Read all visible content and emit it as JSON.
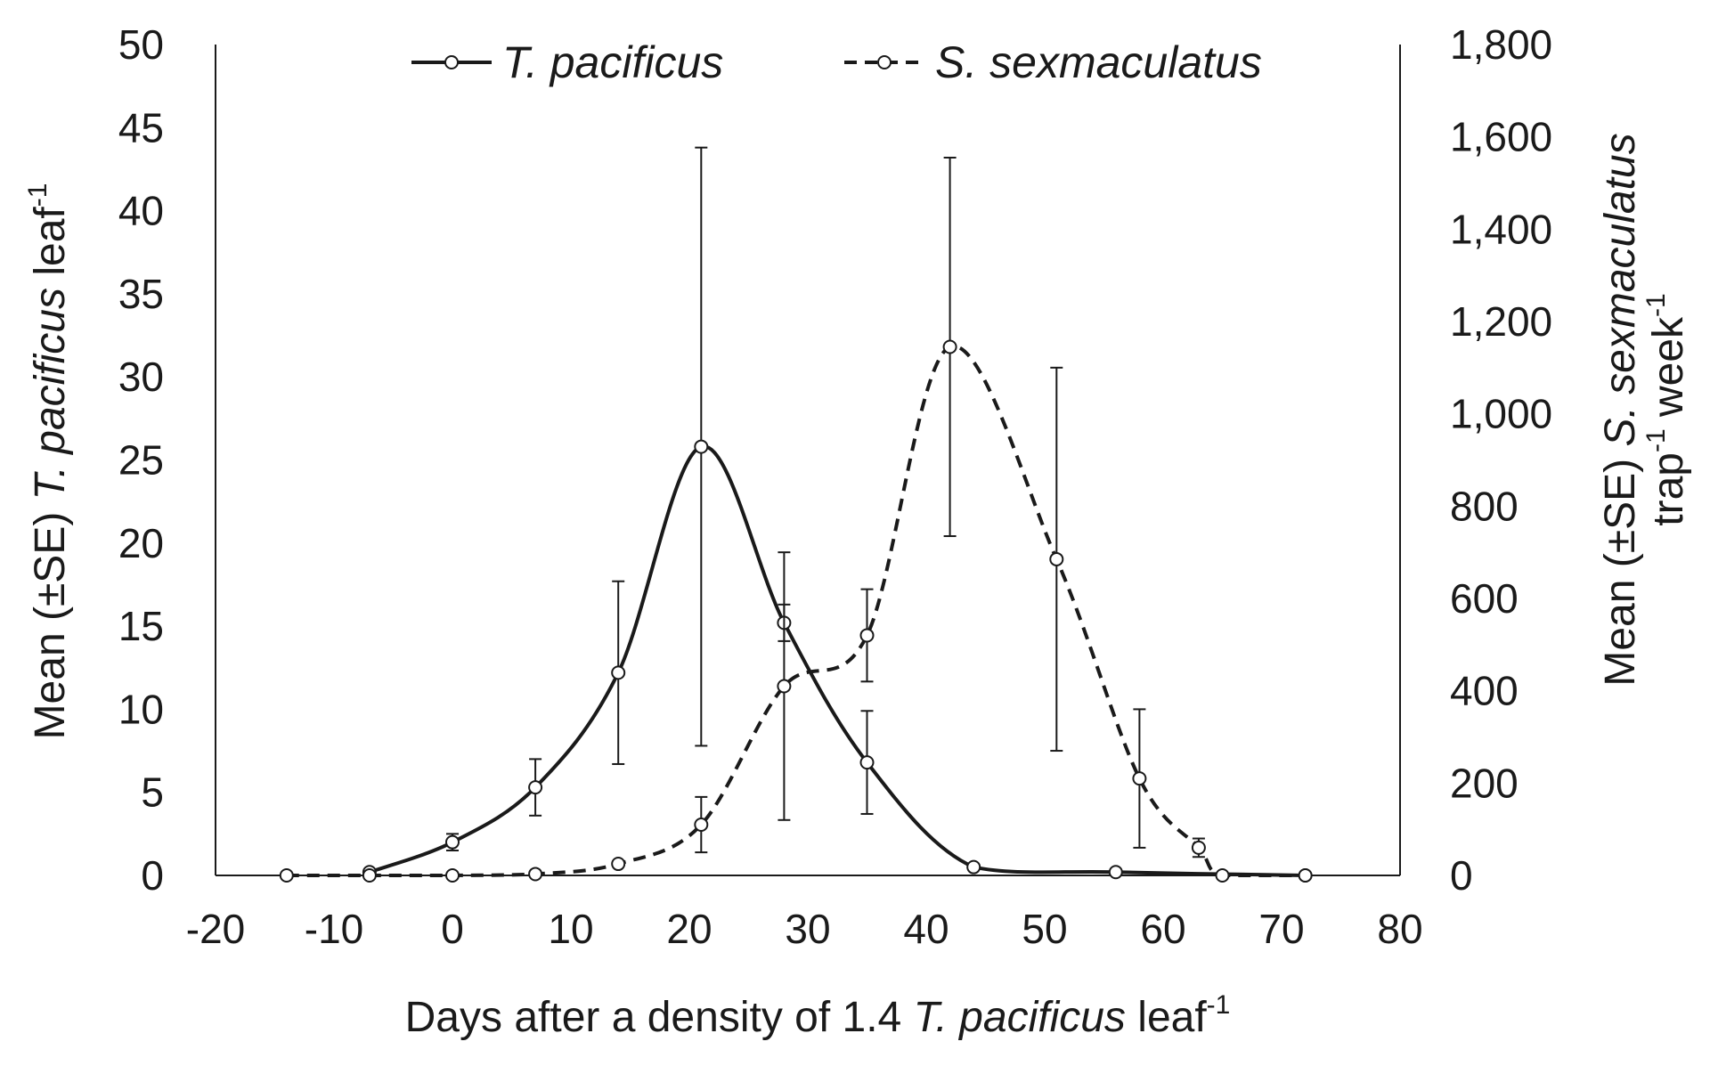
{
  "chart_data": {
    "type": "line",
    "title": "",
    "xlabel": {
      "before": "Days after a density of 1.4 ",
      "italic": "T. pacificus",
      "after": " leaf",
      "sup": "-1"
    },
    "ylabel": {
      "before": "Mean (±SE) ",
      "italic": "T. pacificus",
      "after": " leaf",
      "sup": "-1"
    },
    "y2label": {
      "line1_before": "Mean (±SE) ",
      "line1_italic": "S. sexmaculatus",
      "line2_a": "trap",
      "line2_sup1": "-1",
      "line2_b": " week",
      "line2_sup2": "-1"
    },
    "xlim": [
      -20,
      80
    ],
    "ylim": [
      0,
      50
    ],
    "y2lim": [
      0,
      1800
    ],
    "x_ticks": [
      "-20",
      "-10",
      "0",
      "10",
      "20",
      "30",
      "40",
      "50",
      "60",
      "70",
      "80"
    ],
    "y_ticks": [
      "0",
      "5",
      "10",
      "15",
      "20",
      "25",
      "30",
      "35",
      "40",
      "45",
      "50"
    ],
    "y2_ticks": [
      "0",
      "200",
      "400",
      "600",
      "800",
      "1,000",
      "1,200",
      "1,400",
      "1,600",
      "1,800"
    ],
    "legend_position": "top-center",
    "series": [
      {
        "name": "T. pacificus",
        "axis": "left",
        "line_style": "solid",
        "points": [
          {
            "x": -7,
            "y": 0.2,
            "se": 0.1
          },
          {
            "x": 0,
            "y": 2.0,
            "se": 0.5
          },
          {
            "x": 7,
            "y": 5.3,
            "se": 1.7
          },
          {
            "x": 14,
            "y": 12.2,
            "se": 5.5
          },
          {
            "x": 21,
            "y": 25.8,
            "se": 18.0
          },
          {
            "x": 28,
            "y": 15.2,
            "se": 1.1
          },
          {
            "x": 35,
            "y": 6.8,
            "se": 3.1
          },
          {
            "x": 44,
            "y": 0.5,
            "se": 0.15
          },
          {
            "x": 56,
            "y": 0.2,
            "se": 0.1
          },
          {
            "x": 72,
            "y": 0.0,
            "se": 0.1
          }
        ]
      },
      {
        "name": "S. sexmaculatus",
        "axis": "right",
        "line_style": "dashed",
        "points": [
          {
            "x": -14,
            "y": 0,
            "se": 0
          },
          {
            "x": -7,
            "y": 0,
            "se": 0
          },
          {
            "x": 0,
            "y": 0,
            "se": 0
          },
          {
            "x": 7,
            "y": 3,
            "se": 0
          },
          {
            "x": 14,
            "y": 25,
            "se": 0
          },
          {
            "x": 21,
            "y": 110,
            "se": 60
          },
          {
            "x": 28,
            "y": 410,
            "se": 290
          },
          {
            "x": 35,
            "y": 520,
            "se": 100
          },
          {
            "x": 42,
            "y": 1145,
            "se": 410
          },
          {
            "x": 51,
            "y": 685,
            "se": 415
          },
          {
            "x": 58,
            "y": 210,
            "se": 150
          },
          {
            "x": 63,
            "y": 60,
            "se": 20
          },
          {
            "x": 65,
            "y": 0,
            "se": 0
          },
          {
            "x": 72,
            "y": 0,
            "se": 0
          }
        ]
      }
    ],
    "colors": {
      "line": "#1a1a1a",
      "marker_fill": "#ffffff",
      "background": "#ffffff"
    }
  }
}
